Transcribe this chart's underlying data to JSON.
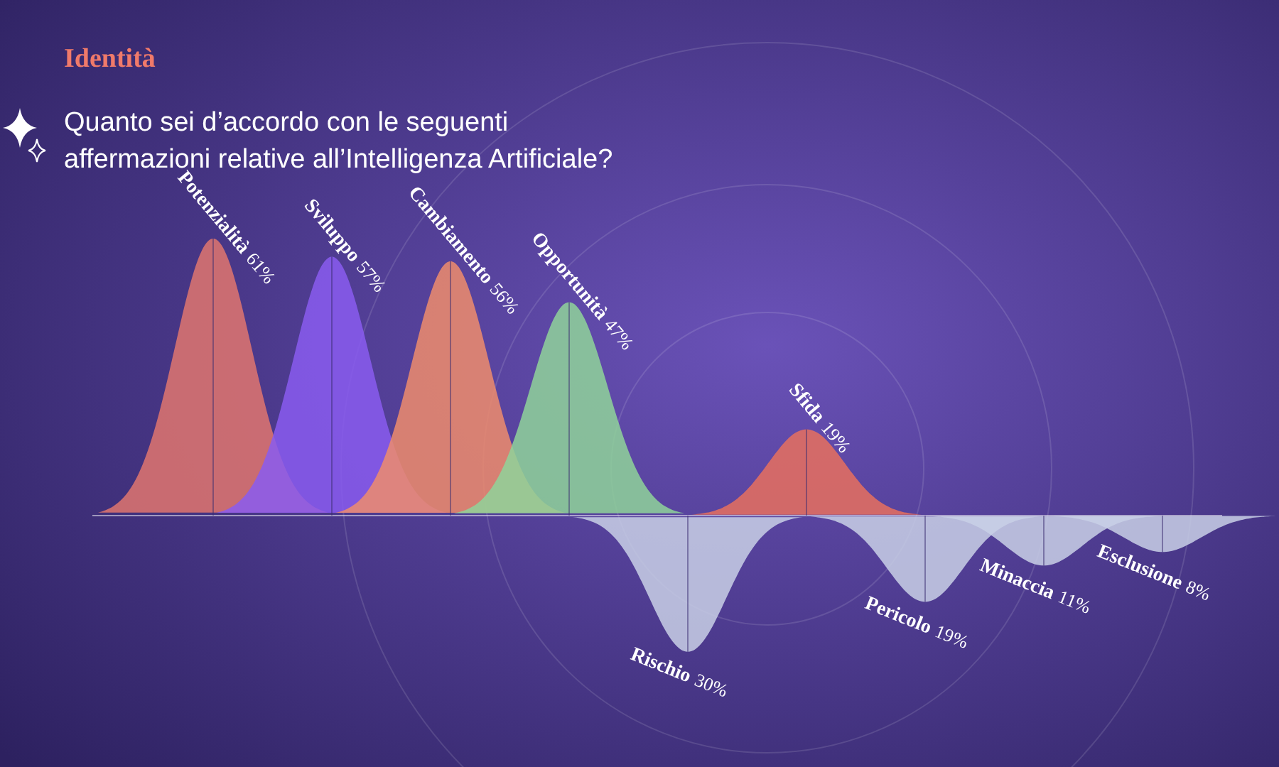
{
  "chart_data": {
    "type": "other",
    "subtitle": "Identità",
    "title": "Quanto sei d’accordo con le seguenti affermazioni relative all’Intelligenza Artificiale?",
    "categories": [
      "Potenzialità",
      "Sviluppo",
      "Cambiamento",
      "Opportunità",
      "Rischio",
      "Sfida",
      "Pericolo",
      "Minaccia",
      "Esclusione"
    ],
    "series": [
      {
        "values": [
          61,
          57,
          56,
          47,
          null,
          19,
          null,
          null,
          null
        ],
        "value_labels": [
          "61%",
          "57%",
          "56%",
          "47%",
          null,
          "19%",
          null,
          null,
          null
        ]
      },
      {
        "values": [
          null,
          null,
          null,
          null,
          30,
          null,
          19,
          11,
          8
        ],
        "value_labels": [
          null,
          null,
          null,
          null,
          "30%",
          null,
          "19%",
          "11%",
          "8%"
        ]
      }
    ],
    "colors": [
      "#e0766e",
      "#8a5cf0",
      "#ef8c6c",
      "#8fd49a",
      "#c9d0e6",
      "#e8705e",
      "#c9d0e6",
      "#c9d0e6",
      "#c9d0e6"
    ]
  }
}
